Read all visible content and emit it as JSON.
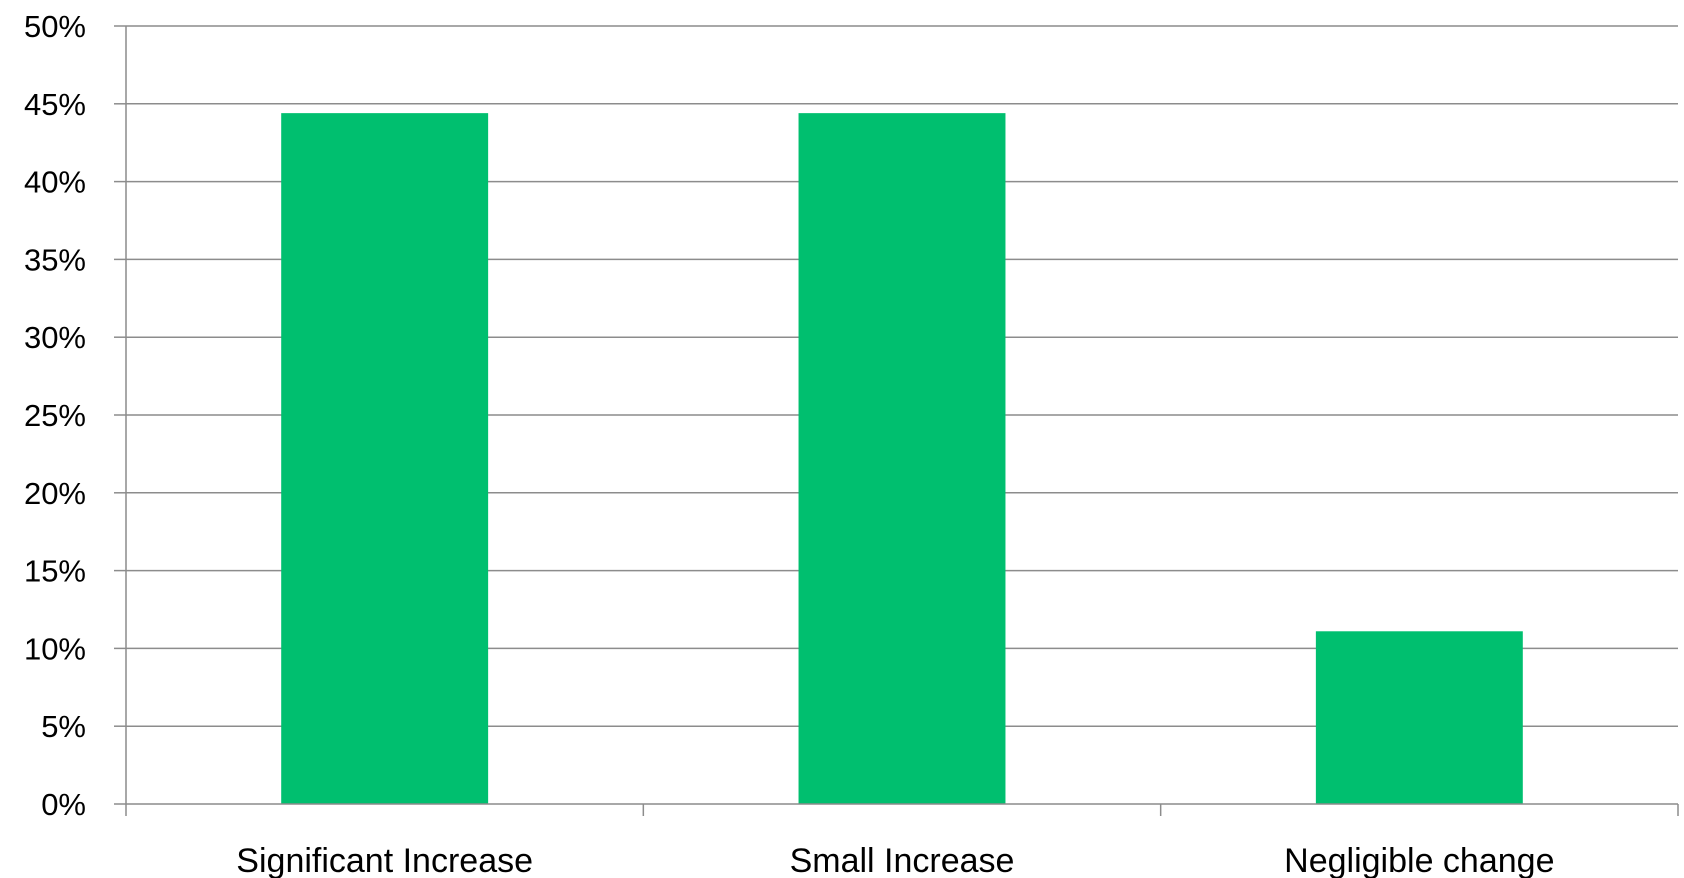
{
  "chart_data": {
    "type": "bar",
    "categories": [
      "Significant Increase",
      "Small Increase",
      "Negligible change"
    ],
    "values": [
      44.4,
      44.4,
      11.1
    ],
    "ylim": [
      0,
      50
    ],
    "y_ticks": [
      0,
      5,
      10,
      15,
      20,
      25,
      30,
      35,
      40,
      45,
      50
    ],
    "y_tick_labels": [
      "0%",
      "5%",
      "10%",
      "15%",
      "20%",
      "25%",
      "30%",
      "35%",
      "40%",
      "45%",
      "50%"
    ],
    "grid": true,
    "legend": "none",
    "bar_color": "#00bf6f"
  }
}
